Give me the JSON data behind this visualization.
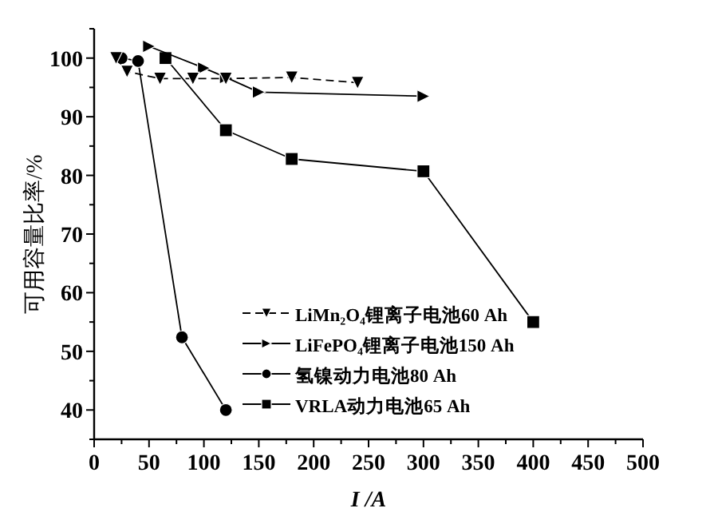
{
  "chart_data": {
    "type": "line",
    "xlabel": "I /A",
    "ylabel": "可用容量比率/%",
    "xlim": [
      0,
      500
    ],
    "ylim": [
      35,
      105
    ],
    "xticks": [
      0,
      {
        "value": 25,
        "label": null
      },
      50,
      {
        "value": 75,
        "label": null
      },
      100,
      {
        "value": 125,
        "label": null
      },
      150,
      {
        "value": 175,
        "label": null
      },
      200,
      {
        "value": 225,
        "label": null
      },
      250,
      {
        "value": 275,
        "label": null
      },
      300,
      {
        "value": 325,
        "label": null
      },
      350,
      {
        "value": 375,
        "label": null
      },
      400,
      {
        "value": 425,
        "label": null
      },
      450,
      {
        "value": 475,
        "label": null
      },
      500
    ],
    "yticks": [
      {
        "value": 35,
        "label": null
      },
      40,
      {
        "value": 45,
        "label": null
      },
      50,
      {
        "value": 55,
        "label": null
      },
      60,
      {
        "value": 65,
        "label": null
      },
      70,
      {
        "value": 75,
        "label": null
      },
      80,
      {
        "value": 85,
        "label": null
      },
      90,
      {
        "value": 95,
        "label": null
      },
      100,
      {
        "value": 105,
        "label": null
      }
    ],
    "grid": false,
    "legend": "bottom",
    "series": [
      {
        "name": "LiMn₂O₄锂离子电池60 Ah",
        "color": "#000000",
        "marker": "triangle-down",
        "line_style": "dashed",
        "x": [
          20,
          30,
          60,
          90,
          120,
          180,
          240
        ],
        "values": [
          100,
          97.7,
          96.5,
          96.5,
          96.5,
          96.7,
          95.8
        ]
      },
      {
        "name": "LiFePO₄锂离子电池150 Ah",
        "color": "#000000",
        "marker": "triangle-right",
        "line_style": "solid",
        "x": [
          50,
          100,
          120,
          150,
          300
        ],
        "values": [
          102,
          98.3,
          96.7,
          94.2,
          93.5
        ]
      },
      {
        "name": "氢镍动力电池80 Ah",
        "color": "#000000",
        "marker": "circle",
        "line_style": "solid",
        "x": [
          25,
          40,
          80,
          120
        ],
        "values": [
          100,
          99.5,
          52.4,
          40
        ]
      },
      {
        "name": "VRLA动力电池65 Ah",
        "color": "#000000",
        "marker": "square",
        "line_style": "solid",
        "x": [
          65,
          120,
          180,
          300,
          400
        ],
        "values": [
          100,
          87.7,
          82.8,
          80.7,
          55
        ]
      }
    ]
  }
}
